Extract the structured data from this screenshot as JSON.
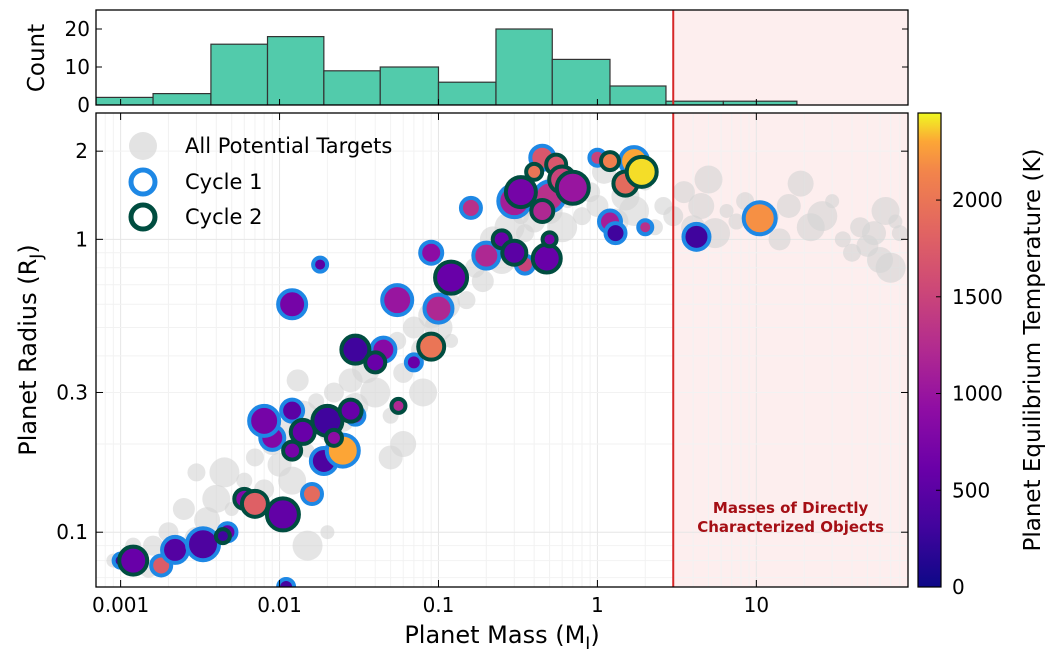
{
  "chart_data": [
    {
      "type": "bar",
      "panel": "histogram",
      "ylabel": "Count",
      "xscale": "log",
      "xlim": [
        0.0007,
        90
      ],
      "ylim": [
        0,
        25
      ],
      "y_ticks": [
        0,
        10,
        20
      ],
      "bins": [
        {
          "from": 0.0007,
          "to": 0.0016,
          "count": 2
        },
        {
          "from": 0.0016,
          "to": 0.0037,
          "count": 3
        },
        {
          "from": 0.0037,
          "to": 0.0084,
          "count": 16
        },
        {
          "from": 0.0084,
          "to": 0.019,
          "count": 18
        },
        {
          "from": 0.019,
          "to": 0.043,
          "count": 9
        },
        {
          "from": 0.043,
          "to": 0.1,
          "count": 10
        },
        {
          "from": 0.1,
          "to": 0.23,
          "count": 6
        },
        {
          "from": 0.23,
          "to": 0.52,
          "count": 20
        },
        {
          "from": 0.52,
          "to": 1.2,
          "count": 12
        },
        {
          "from": 1.2,
          "to": 2.7,
          "count": 5
        },
        {
          "from": 2.7,
          "to": 6.2,
          "count": 1
        },
        {
          "from": 6.2,
          "to": 18,
          "count": 1
        }
      ],
      "colors": {
        "bar": "#52cbab",
        "edge": "#333333"
      }
    },
    {
      "type": "scatter",
      "panel": "main",
      "xlabel": "Planet Mass (M",
      "xlabel_sub": "J",
      "ylabel": "Planet Radius (R",
      "ylabel_sub": "J",
      "xscale": "log",
      "yscale": "log",
      "xlim": [
        0.0007,
        90
      ],
      "ylim": [
        0.065,
        2.7
      ],
      "x_ticks": [
        "0.001",
        "0.01",
        "0.1",
        "1",
        "10"
      ],
      "y_ticks": [
        "0.1",
        "0.3",
        "1",
        "2"
      ],
      "colorbar": {
        "label": "Planet Equilibrium Temperature (K)",
        "min": 0,
        "max": 2450,
        "ticks": [
          "0",
          "500",
          "1000",
          "1500",
          "2000"
        ],
        "colormap": "plasma"
      },
      "threshold": {
        "x": 3,
        "color": "#d62728",
        "shade_color": "#fdeeee",
        "label_lines": [
          "Masses of Directly",
          "Characterized Objects"
        ],
        "label_color": "#a50f15"
      },
      "legend": {
        "position": "top-left",
        "entries": [
          {
            "label": "All Potential Targets",
            "marker": "filled-gray"
          },
          {
            "label": "Cycle 1",
            "marker": "ring",
            "color": "#1e88e5"
          },
          {
            "label": "Cycle 2",
            "marker": "ring",
            "color": "#004d40"
          }
        ]
      },
      "series": [
        {
          "name": "All Potential Targets",
          "color": "#d4d4d4",
          "points": [
            [
              0.0009,
              0.08
            ],
            [
              0.0012,
              0.09
            ],
            [
              0.0015,
              0.075
            ],
            [
              0.002,
              0.1
            ],
            [
              0.0025,
              0.12
            ],
            [
              0.003,
              0.095
            ],
            [
              0.0035,
              0.11
            ],
            [
              0.004,
              0.13
            ],
            [
              0.0045,
              0.16
            ],
            [
              0.005,
              0.12
            ],
            [
              0.006,
              0.15
            ],
            [
              0.007,
              0.18
            ],
            [
              0.008,
              0.14
            ],
            [
              0.009,
              0.2
            ],
            [
              0.01,
              0.17
            ],
            [
              0.011,
              0.22
            ],
            [
              0.012,
              0.15
            ],
            [
              0.014,
              0.25
            ],
            [
              0.015,
              0.19
            ],
            [
              0.017,
              0.28
            ],
            [
              0.02,
              0.22
            ],
            [
              0.022,
              0.3
            ],
            [
              0.025,
              0.24
            ],
            [
              0.028,
              0.33
            ],
            [
              0.03,
              0.27
            ],
            [
              0.035,
              0.36
            ],
            [
              0.04,
              0.3
            ],
            [
              0.045,
              0.4
            ],
            [
              0.05,
              0.25
            ],
            [
              0.055,
              0.45
            ],
            [
              0.06,
              0.35
            ],
            [
              0.07,
              0.5
            ],
            [
              0.08,
              0.42
            ],
            [
              0.09,
              0.55
            ],
            [
              0.1,
              0.5
            ],
            [
              0.11,
              0.6
            ],
            [
              0.12,
              0.45
            ],
            [
              0.13,
              0.7
            ],
            [
              0.15,
              0.62
            ],
            [
              0.17,
              0.8
            ],
            [
              0.19,
              0.72
            ],
            [
              0.2,
              0.9
            ],
            [
              0.22,
              1.0
            ],
            [
              0.25,
              0.85
            ],
            [
              0.28,
              1.1
            ],
            [
              0.3,
              0.95
            ],
            [
              0.33,
              1.2
            ],
            [
              0.35,
              1.05
            ],
            [
              0.38,
              1.3
            ],
            [
              0.4,
              1.15
            ],
            [
              0.45,
              1.4
            ],
            [
              0.5,
              1.25
            ],
            [
              0.55,
              1.5
            ],
            [
              0.6,
              1.1
            ],
            [
              0.65,
              1.35
            ],
            [
              0.7,
              1.6
            ],
            [
              0.8,
              1.2
            ],
            [
              0.9,
              1.45
            ],
            [
              1.0,
              1.3
            ],
            [
              1.1,
              1.7
            ],
            [
              1.3,
              1.15
            ],
            [
              1.5,
              1.4
            ],
            [
              1.7,
              1.25
            ],
            [
              2.0,
              1.55
            ],
            [
              2.3,
              1.1
            ],
            [
              2.6,
              1.3
            ],
            [
              3.0,
              1.2
            ],
            [
              3.5,
              1.45
            ],
            [
              4.0,
              1.1
            ],
            [
              4.5,
              1.3
            ],
            [
              5.0,
              1.6
            ],
            [
              5.5,
              1.05
            ],
            [
              6.5,
              1.25
            ],
            [
              7.5,
              1.15
            ],
            [
              8.5,
              1.35
            ],
            [
              12,
              1.2
            ],
            [
              14,
              1.0
            ],
            [
              16,
              1.3
            ],
            [
              19,
              1.55
            ],
            [
              22,
              1.1
            ],
            [
              26,
              1.2
            ],
            [
              30,
              1.35
            ],
            [
              35,
              1.0
            ],
            [
              40,
              0.9
            ],
            [
              45,
              1.1
            ],
            [
              50,
              0.95
            ],
            [
              55,
              1.05
            ],
            [
              60,
              0.85
            ],
            [
              65,
              1.25
            ],
            [
              70,
              0.8
            ],
            [
              75,
              1.15
            ],
            [
              80,
              1.05
            ],
            [
              0.003,
              0.16
            ],
            [
              0.0016,
              0.09
            ],
            [
              0.013,
              0.33
            ],
            [
              0.05,
              0.18
            ],
            [
              0.06,
              0.2
            ],
            [
              0.08,
              0.3
            ],
            [
              0.015,
              0.09
            ],
            [
              0.02,
              0.1
            ]
          ]
        },
        {
          "name": "Cycle 1",
          "ring_color": "#1e88e5",
          "points": [
            [
              0.001,
              0.08,
              300
            ],
            [
              0.0018,
              0.077,
              1750
            ],
            [
              0.0022,
              0.087,
              450
            ],
            [
              0.0033,
              0.091,
              400
            ],
            [
              0.0047,
              0.1,
              600
            ],
            [
              0.009,
              0.21,
              800
            ],
            [
              0.008,
              0.24,
              700
            ],
            [
              0.011,
              0.065,
              350
            ],
            [
              0.012,
              0.26,
              500
            ],
            [
              0.012,
              0.6,
              700
            ],
            [
              0.018,
              0.82,
              500
            ],
            [
              0.016,
              0.135,
              1900
            ],
            [
              0.019,
              0.175,
              400
            ],
            [
              0.025,
              0.19,
              2300
            ],
            [
              0.03,
              0.25,
              900
            ],
            [
              0.045,
              0.42,
              850
            ],
            [
              0.055,
              0.62,
              1000
            ],
            [
              0.07,
              0.38,
              600
            ],
            [
              0.09,
              0.9,
              900
            ],
            [
              0.1,
              0.58,
              1200
            ],
            [
              0.11,
              0.74,
              600
            ],
            [
              0.16,
              1.28,
              1300
            ],
            [
              0.2,
              0.88,
              1200
            ],
            [
              0.3,
              1.35,
              1100
            ],
            [
              0.35,
              0.82,
              1500
            ],
            [
              0.45,
              1.9,
              1700
            ],
            [
              0.5,
              1.4,
              1300
            ],
            [
              1.0,
              1.9,
              1500
            ],
            [
              1.2,
              1.15,
              1100
            ],
            [
              1.7,
              1.85,
              2300
            ],
            [
              2.0,
              1.1,
              1300
            ],
            [
              1.3,
              1.05,
              300
            ],
            [
              4.2,
              1.02,
              300
            ],
            [
              10.5,
              1.18,
              2200
            ]
          ]
        },
        {
          "name": "Cycle 2",
          "ring_color": "#004d40",
          "points": [
            [
              0.0012,
              0.08,
              600
            ],
            [
              0.0044,
              0.097,
              300
            ],
            [
              0.006,
              0.13,
              800
            ],
            [
              0.007,
              0.125,
              1800
            ],
            [
              0.0105,
              0.115,
              550
            ],
            [
              0.012,
              0.19,
              700
            ],
            [
              0.014,
              0.22,
              600
            ],
            [
              0.02,
              0.24,
              300
            ],
            [
              0.022,
              0.21,
              900
            ],
            [
              0.028,
              0.26,
              600
            ],
            [
              0.03,
              0.42,
              300
            ],
            [
              0.056,
              0.27,
              1200
            ],
            [
              0.04,
              0.38,
              600
            ],
            [
              0.09,
              0.43,
              2000
            ],
            [
              0.12,
              0.74,
              600
            ],
            [
              0.25,
              1.0,
              600
            ],
            [
              0.3,
              0.9,
              500
            ],
            [
              0.33,
              1.45,
              700
            ],
            [
              0.4,
              1.7,
              2000
            ],
            [
              0.45,
              1.25,
              1200
            ],
            [
              0.48,
              0.86,
              600
            ],
            [
              0.5,
              1.0,
              700
            ],
            [
              0.55,
              1.8,
              1700
            ],
            [
              0.6,
              1.6,
              1500
            ],
            [
              0.7,
              1.5,
              1000
            ],
            [
              1.2,
              1.85,
              2100
            ],
            [
              1.5,
              1.55,
              1900
            ],
            [
              1.9,
              1.7,
              2400
            ]
          ]
        }
      ]
    }
  ]
}
